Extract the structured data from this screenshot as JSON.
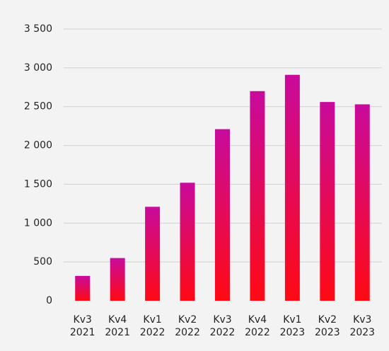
{
  "chart_data": {
    "type": "bar",
    "categories": [
      [
        "Kv3",
        "2021"
      ],
      [
        "Kv4",
        "2021"
      ],
      [
        "Kv1",
        "2022"
      ],
      [
        "Kv2",
        "2022"
      ],
      [
        "Kv3",
        "2022"
      ],
      [
        "Kv4",
        "2022"
      ],
      [
        "Kv1",
        "2023"
      ],
      [
        "Kv2",
        "2023"
      ],
      [
        "Kv3",
        "2023"
      ]
    ],
    "values": [
      320,
      550,
      1210,
      1520,
      2210,
      2700,
      2910,
      2560,
      2530
    ],
    "gradient": [
      "#c80a9c",
      "#ff0a14"
    ],
    "ylim": [
      0,
      3500
    ],
    "yticks": [
      0,
      500,
      {
        "value": 1000,
        "label": "1 000"
      },
      {
        "value": 1500,
        "label": "1 500"
      },
      {
        "value": 2000,
        "label": "2 000"
      },
      {
        "value": 2500,
        "label": "2 500"
      },
      {
        "value": 3000,
        "label": "3 000"
      },
      {
        "value": 3500,
        "label": "3 500"
      }
    ],
    "grid": true
  }
}
